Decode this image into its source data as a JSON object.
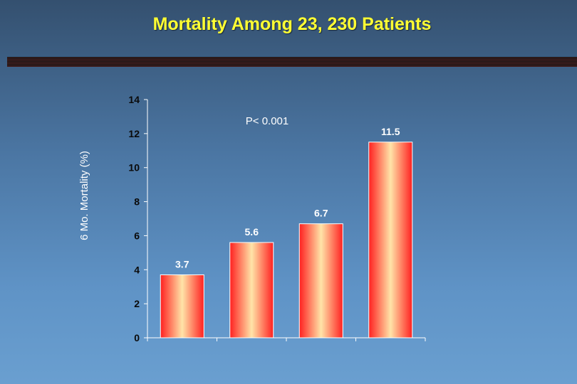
{
  "slide": {
    "title": "Mortality Among 23, 230 Patients"
  },
  "chart_data": {
    "type": "bar",
    "categories": [
      "",
      "",
      "",
      ""
    ],
    "values": [
      3.7,
      5.6,
      6.7,
      11.5
    ],
    "data_labels": [
      "3.7",
      "5.6",
      "6.7",
      "11.5"
    ],
    "ylabel": "6 Mo. Mortality (%)",
    "xlabel": "",
    "ylim": [
      0,
      14
    ],
    "yticks": [
      0,
      2,
      4,
      6,
      8,
      10,
      12,
      14
    ],
    "annotation": "P< 0.001",
    "grid": false,
    "legend": "none",
    "colors": {
      "bar_edge": "#ff2222",
      "bar_center": "#ffe4a8",
      "axis": "#ffffff",
      "tick_label": "#0a0a0a",
      "data_label": "#ffffff"
    }
  }
}
